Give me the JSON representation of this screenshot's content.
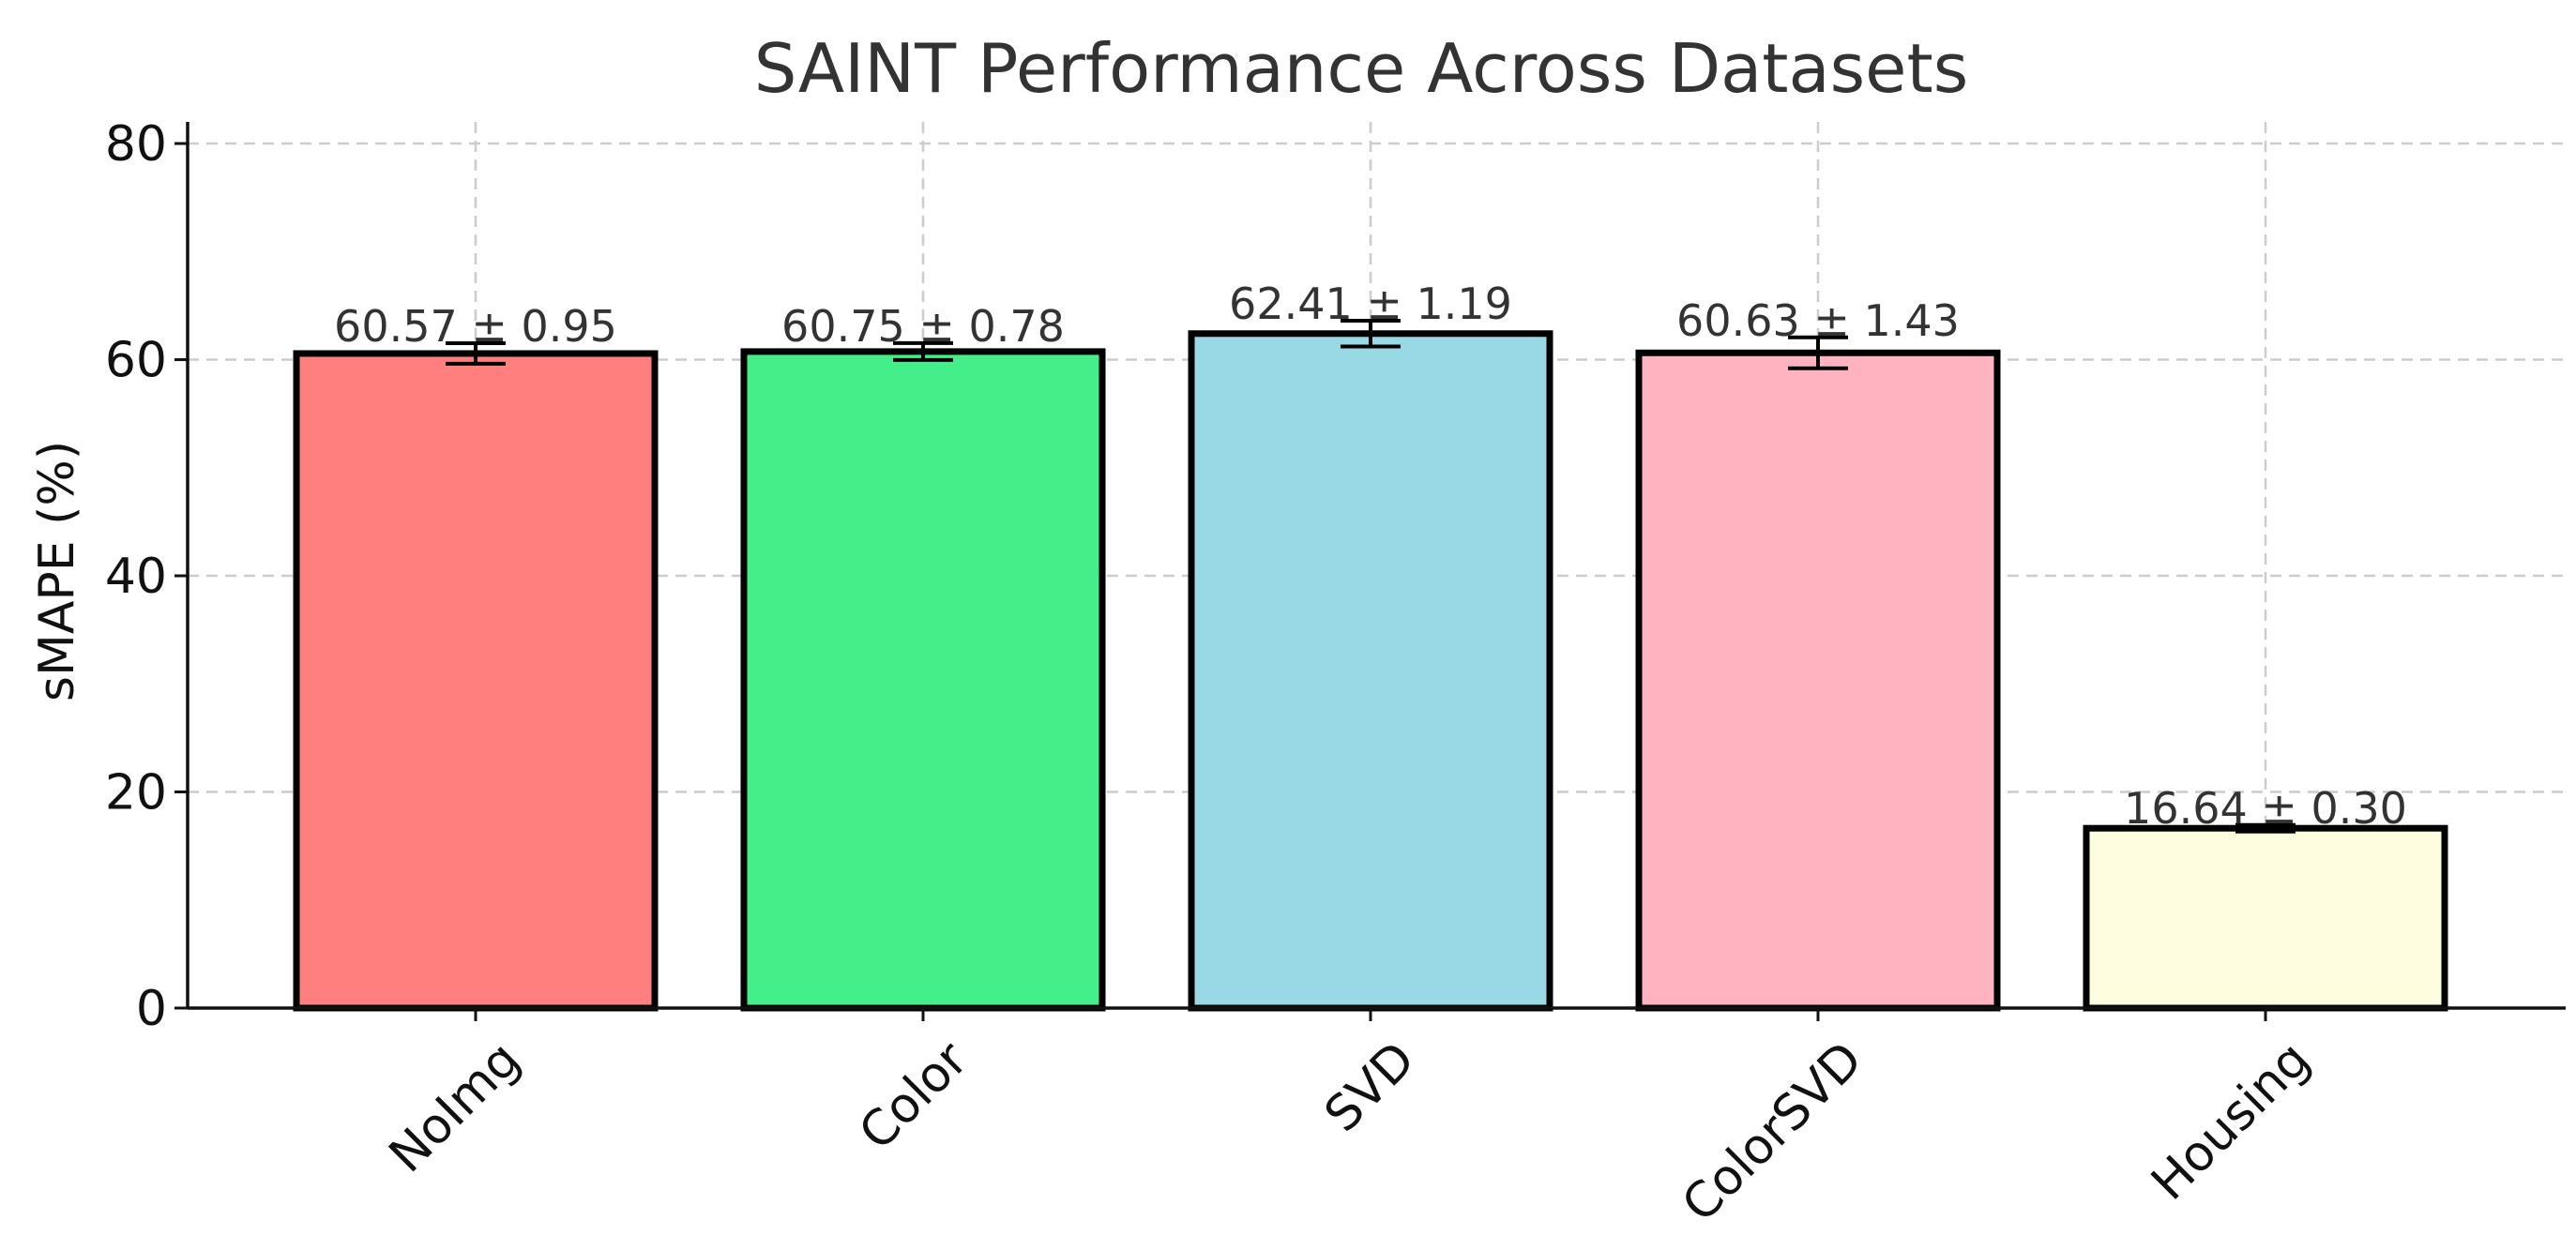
{
  "chart_data": {
    "type": "bar",
    "title": "SAINT Performance Across Datasets",
    "xlabel": "",
    "ylabel": "sMAPE (%)",
    "ylim": [
      0,
      82
    ],
    "yticks": [
      0,
      20,
      40,
      60,
      80
    ],
    "grid": true,
    "categories": [
      "NoImg",
      "Color",
      "SVD",
      "ColorSVD",
      "Housing"
    ],
    "values": [
      60.57,
      60.75,
      62.41,
      60.63,
      16.64
    ],
    "errors": [
      0.95,
      0.78,
      1.19,
      1.43,
      0.3
    ],
    "data_labels": [
      "60.57 ± 0.95",
      "60.75 ± 0.78",
      "62.41 ± 1.19",
      "60.63 ± 1.43",
      "16.64 ± 0.30"
    ],
    "colors": [
      "#ff7f7f",
      "#44ee88",
      "#99d9e6",
      "#ffb3c1",
      "#fffde0"
    ]
  }
}
